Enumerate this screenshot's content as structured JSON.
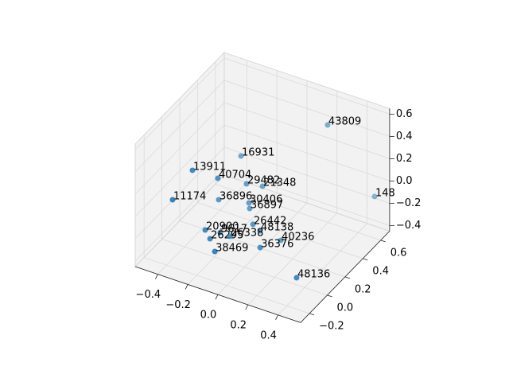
{
  "chart_data": {
    "type": "scatter3d",
    "color": "#1f77b4",
    "grid": true,
    "labels": [
      "43809",
      "16931",
      "13911",
      "40704",
      "29482",
      "21348",
      "148",
      "11174",
      "36896",
      "30406",
      "36897",
      "26442",
      "48138",
      "20900",
      "9617",
      "26295",
      "26338",
      "40236",
      "36376",
      "38469",
      "48136"
    ],
    "x": [
      0.256,
      -0.261,
      -0.347,
      -0.237,
      -0.165,
      -0.118,
      0.509,
      -0.42,
      -0.291,
      -0.149,
      -0.144,
      -0.063,
      -0.016,
      -0.262,
      -0.221,
      -0.23,
      -0.157,
      0.063,
      0.044,
      -0.139,
      0.346
    ],
    "y": [
      0.5,
      0.4,
      0,
      0.1,
      0.3,
      0.4,
      0.6,
      -0.1,
      0.2,
      0.3,
      0.3,
      0.2,
      0.2,
      0,
      0.1,
      0,
      0.1,
      0.3,
      0.1,
      -0.1,
      0
    ],
    "z": [
      0.533,
      0.1,
      0.261,
      0.157,
      -0.024,
      -0.106,
      -0.076,
      0.045,
      -0.142,
      -0.188,
      -0.236,
      -0.259,
      -0.295,
      -0.236,
      -0.321,
      -0.3,
      -0.327,
      -0.427,
      -0.336,
      -0.291,
      -0.387
    ],
    "xlim": [
      -0.55,
      0.55
    ],
    "ylim": [
      -0.3,
      0.7
    ],
    "zlim": [
      -0.45,
      0.65
    ],
    "xticks": [
      {
        "value": -0.4,
        "label": "−0.4"
      },
      {
        "value": -0.2,
        "label": "−0.2"
      },
      {
        "value": 0,
        "label": "0.0"
      },
      0.2,
      0.4
    ],
    "yticks": [
      {
        "value": -0.2,
        "label": "−0.2"
      },
      {
        "value": 0,
        "label": "0.0"
      },
      0.2,
      0.4,
      0.6
    ],
    "zticks": [
      {
        "value": -0.4,
        "label": "−0.4"
      },
      {
        "value": -0.2,
        "label": "−0.2"
      },
      {
        "value": 0,
        "label": "0.0"
      },
      0.2,
      0.4,
      0.6
    ]
  }
}
